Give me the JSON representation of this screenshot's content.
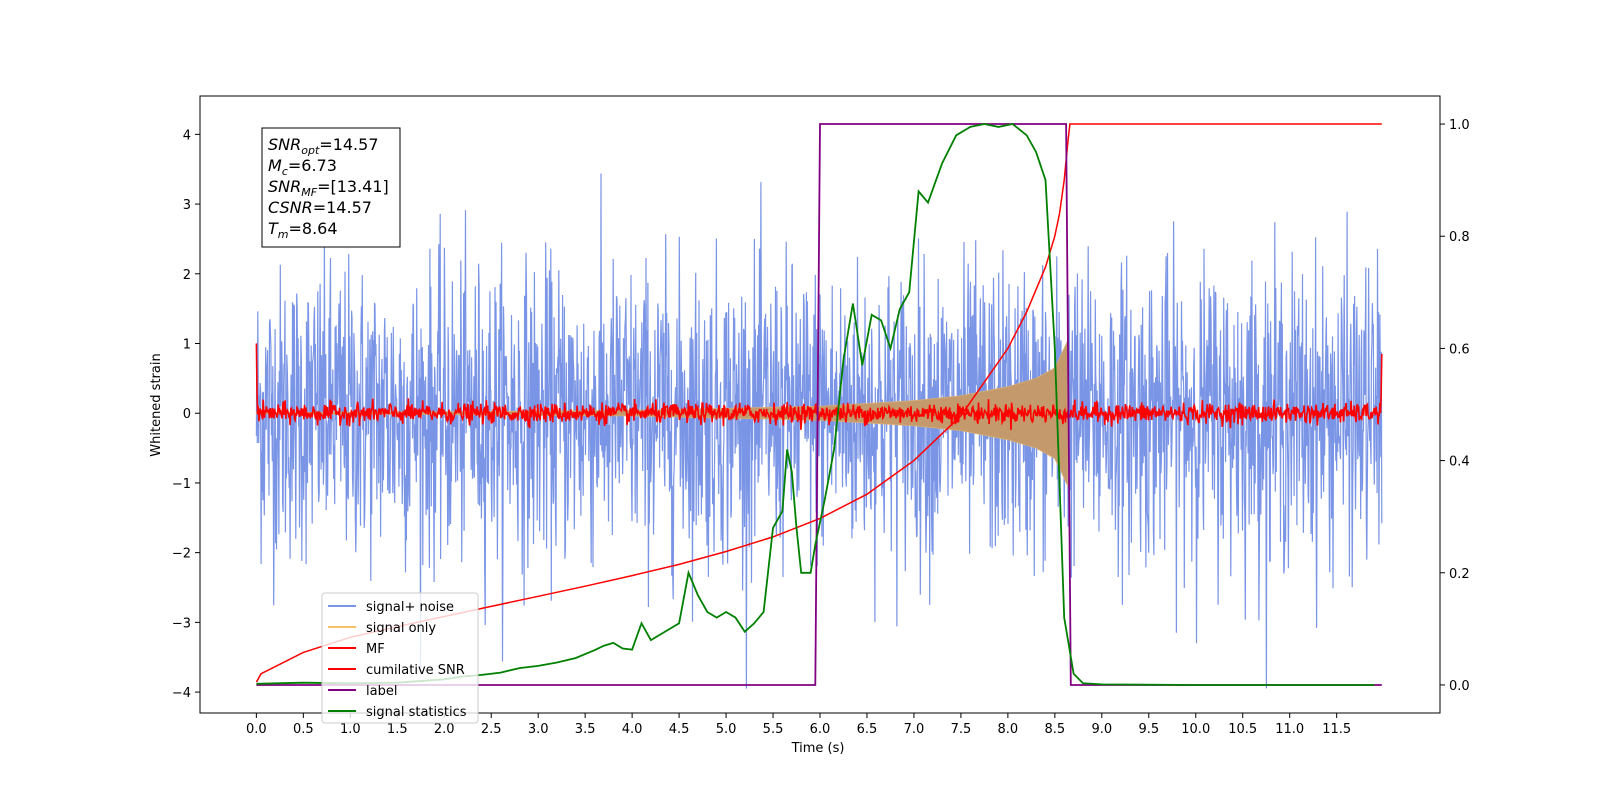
{
  "chart_data": {
    "type": "line",
    "xlabel": "Time (s)",
    "ylabel": "Whitened strain",
    "xlim": [
      -0.6,
      12.6
    ],
    "ylim": [
      -4.3,
      4.55
    ],
    "ylim_right": [
      -0.05,
      1.05
    ],
    "grid": false,
    "legend_position": "lower-left",
    "x_ticks": [
      "0.0",
      "0.5",
      "1.0",
      "1.5",
      "2.0",
      "2.5",
      "3.0",
      "3.5",
      "4.0",
      "4.5",
      "5.0",
      "5.5",
      "6.0",
      "6.5",
      "7.0",
      "7.5",
      "8.0",
      "8.5",
      "9.0",
      "9.5",
      "10.0",
      "10.5",
      "11.0",
      "11.5"
    ],
    "y_ticks_left": [
      4,
      3,
      2,
      1,
      0,
      -1,
      -2,
      -3,
      -4
    ],
    "y_ticks_left_labels": [
      "4",
      "3",
      "2",
      "1",
      "0",
      "−1",
      "−2",
      "−3",
      "−4"
    ],
    "y_ticks_right": [
      1.0,
      0.8,
      0.6,
      0.4,
      0.2,
      0.0
    ],
    "y_ticks_right_labels": [
      "1.0",
      "0.8",
      "0.6",
      "0.4",
      "0.2",
      "0.0"
    ],
    "annotation": {
      "lines": [
        {
          "sym": "SNR",
          "sub": "opt",
          "value": "=14.57"
        },
        {
          "sym": "M",
          "sub": "c",
          "value": "=6.73"
        },
        {
          "sym": "SNR",
          "sub": "MF",
          "value": "=[13.41]"
        },
        {
          "sym": "CSNR",
          "sub": "",
          "value": "=14.57"
        },
        {
          "sym": "T",
          "sub": "m",
          "value": "=8.64"
        }
      ]
    },
    "series": [
      {
        "name": "signal+ noise",
        "color": "#7a95e6",
        "axis": "left",
        "kind": "noise",
        "amplitude_envelope": [
          2.4,
          3.4
        ],
        "x_range": [
          0.0,
          11.98
        ]
      },
      {
        "name": "signal only",
        "color": "#f5c26b",
        "axis": "left",
        "kind": "chirp",
        "x_range": [
          0.0,
          8.64
        ],
        "envelope_points": [
          [
            0.0,
            0.01
          ],
          [
            2.0,
            0.02
          ],
          [
            4.0,
            0.04
          ],
          [
            6.0,
            0.1
          ],
          [
            7.0,
            0.18
          ],
          [
            7.5,
            0.25
          ],
          [
            8.0,
            0.38
          ],
          [
            8.3,
            0.5
          ],
          [
            8.5,
            0.65
          ],
          [
            8.64,
            1.05
          ]
        ]
      },
      {
        "name": "MF",
        "color": "#ff0000",
        "axis": "left",
        "kind": "noise_small",
        "amplitude": 0.13,
        "x_range": [
          0.0,
          11.98
        ],
        "edge_values": [
          1.0,
          0.85
        ]
      },
      {
        "name": "cumilative SNR",
        "color": "#ff0000",
        "axis": "right",
        "x": [
          0.0,
          0.05,
          0.5,
          1.0,
          1.5,
          2.0,
          2.5,
          3.0,
          3.5,
          4.0,
          4.5,
          5.0,
          5.5,
          6.0,
          6.5,
          7.0,
          7.5,
          8.0,
          8.2,
          8.4,
          8.5,
          8.55,
          8.6,
          8.64,
          8.66,
          11.98
        ],
        "y": [
          0.005,
          0.02,
          0.058,
          0.085,
          0.104,
          0.122,
          0.14,
          0.158,
          0.176,
          0.195,
          0.215,
          0.238,
          0.264,
          0.297,
          0.34,
          0.4,
          0.48,
          0.6,
          0.665,
          0.745,
          0.8,
          0.84,
          0.9,
          0.97,
          1.0,
          1.0
        ]
      },
      {
        "name": "label",
        "color": "#800080",
        "axis": "right",
        "x": [
          0.0,
          5.95,
          6.0,
          8.62,
          8.67,
          11.98
        ],
        "y": [
          0.0,
          0.0,
          1.0,
          1.0,
          0.0,
          0.0
        ]
      },
      {
        "name": "signal statistics",
        "color": "#008000",
        "axis": "right",
        "x": [
          0.0,
          0.5,
          1.0,
          1.5,
          2.0,
          2.2,
          2.4,
          2.6,
          2.8,
          3.0,
          3.2,
          3.4,
          3.5,
          3.6,
          3.7,
          3.8,
          3.9,
          4.0,
          4.1,
          4.2,
          4.3,
          4.4,
          4.5,
          4.6,
          4.7,
          4.8,
          4.9,
          5.0,
          5.1,
          5.2,
          5.3,
          5.4,
          5.5,
          5.6,
          5.65,
          5.7,
          5.75,
          5.8,
          5.9,
          5.95,
          6.05,
          6.15,
          6.25,
          6.35,
          6.45,
          6.55,
          6.65,
          6.75,
          6.85,
          6.95,
          7.05,
          7.15,
          7.3,
          7.45,
          7.6,
          7.75,
          7.9,
          8.05,
          8.2,
          8.3,
          8.4,
          8.5,
          8.6,
          8.7,
          8.8,
          9.0,
          10.0,
          11.0,
          11.9
        ],
        "y": [
          0.002,
          0.004,
          0.003,
          0.004,
          0.01,
          0.015,
          0.018,
          0.022,
          0.03,
          0.034,
          0.04,
          0.048,
          0.055,
          0.062,
          0.07,
          0.075,
          0.065,
          0.063,
          0.11,
          0.08,
          0.09,
          0.1,
          0.11,
          0.2,
          0.16,
          0.13,
          0.12,
          0.13,
          0.12,
          0.095,
          0.11,
          0.13,
          0.28,
          0.31,
          0.42,
          0.38,
          0.28,
          0.2,
          0.2,
          0.25,
          0.33,
          0.42,
          0.58,
          0.68,
          0.57,
          0.66,
          0.65,
          0.6,
          0.67,
          0.7,
          0.88,
          0.86,
          0.93,
          0.98,
          0.995,
          1.0,
          0.995,
          1.0,
          0.98,
          0.95,
          0.9,
          0.6,
          0.12,
          0.02,
          0.003,
          0.001,
          0.0,
          0.0,
          0.0
        ]
      }
    ]
  }
}
